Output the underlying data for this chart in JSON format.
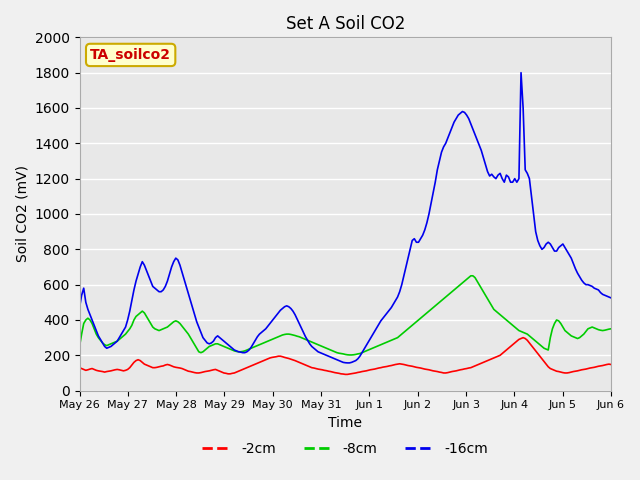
{
  "title": "Set A Soil CO2",
  "ylabel": "Soil CO2 (mV)",
  "xlabel": "Time",
  "annotation_text": "TA_soilco2",
  "annotation_bg": "#ffffcc",
  "annotation_border": "#ccaa00",
  "annotation_text_color": "#cc0000",
  "ylim": [
    0,
    2000
  ],
  "yticks": [
    0,
    200,
    400,
    600,
    800,
    1000,
    1200,
    1400,
    1600,
    1800,
    2000
  ],
  "xtick_labels": [
    "May 26",
    "May 27",
    "May 28",
    "May 29",
    "May 30",
    "May 31",
    "Jun 1",
    "Jun 2",
    "Jun 3",
    "Jun 4",
    "Jun 5",
    "Jun 6"
  ],
  "bg_color": "#e8e8e8",
  "grid_color": "#ffffff",
  "line_colors": [
    "#ff0000",
    "#00cc00",
    "#0000ee"
  ],
  "line_labels": [
    "-2cm",
    "-8cm",
    "-16cm"
  ],
  "line_width": 1.2,
  "red_line": [
    130,
    125,
    120,
    115,
    118,
    122,
    125,
    120,
    115,
    112,
    110,
    108,
    105,
    108,
    110,
    112,
    115,
    118,
    120,
    118,
    115,
    112,
    115,
    120,
    130,
    145,
    160,
    170,
    175,
    170,
    160,
    150,
    145,
    140,
    135,
    130,
    130,
    132,
    135,
    138,
    140,
    145,
    148,
    145,
    140,
    135,
    132,
    130,
    128,
    125,
    120,
    115,
    110,
    108,
    105,
    102,
    100,
    100,
    102,
    105,
    108,
    110,
    112,
    115,
    118,
    120,
    115,
    110,
    105,
    100,
    98,
    95,
    95,
    98,
    100,
    105,
    110,
    115,
    120,
    125,
    130,
    135,
    140,
    145,
    150,
    155,
    160,
    165,
    170,
    175,
    180,
    185,
    188,
    190,
    192,
    195,
    195,
    192,
    188,
    185,
    182,
    178,
    174,
    170,
    165,
    160,
    155,
    150,
    145,
    140,
    135,
    130,
    128,
    125,
    122,
    120,
    118,
    115,
    113,
    110,
    108,
    105,
    102,
    100,
    98,
    95,
    94,
    92,
    92,
    94,
    96,
    98,
    100,
    103,
    105,
    108,
    110,
    112,
    115,
    118,
    120,
    122,
    125,
    128,
    130,
    133,
    135,
    137,
    140,
    142,
    145,
    148,
    150,
    152,
    150,
    148,
    145,
    142,
    140,
    138,
    135,
    132,
    130,
    128,
    125,
    122,
    120,
    118,
    115,
    112,
    110,
    108,
    105,
    103,
    100,
    100,
    102,
    105,
    108,
    110,
    112,
    115,
    118,
    120,
    123,
    125,
    128,
    130,
    135,
    140,
    145,
    150,
    155,
    160,
    165,
    170,
    175,
    180,
    185,
    190,
    195,
    200,
    210,
    220,
    230,
    240,
    250,
    260,
    270,
    280,
    290,
    295,
    300,
    295,
    285,
    270,
    255,
    240,
    225,
    210,
    195,
    180,
    165,
    150,
    135,
    125,
    120,
    115,
    110,
    108,
    105,
    102,
    100,
    100,
    102,
    105,
    108,
    110,
    112,
    115,
    118,
    120,
    122,
    125,
    128,
    130,
    132,
    135,
    138,
    140,
    142,
    145,
    148,
    150,
    148,
    145,
    142,
    140,
    138,
    135,
    132,
    130,
    128,
    125
  ],
  "green_line": [
    250,
    320,
    380,
    400,
    410,
    400,
    380,
    350,
    320,
    300,
    285,
    270,
    260,
    255,
    260,
    265,
    270,
    275,
    280,
    290,
    300,
    310,
    320,
    335,
    350,
    370,
    400,
    420,
    430,
    440,
    450,
    440,
    420,
    400,
    380,
    360,
    350,
    345,
    340,
    345,
    350,
    355,
    360,
    370,
    380,
    390,
    395,
    390,
    380,
    365,
    350,
    335,
    320,
    300,
    280,
    260,
    240,
    220,
    215,
    220,
    230,
    240,
    250,
    255,
    260,
    265,
    265,
    260,
    255,
    250,
    245,
    240,
    235,
    230,
    225,
    222,
    220,
    220,
    222,
    225,
    230,
    235,
    240,
    245,
    250,
    255,
    260,
    265,
    270,
    275,
    280,
    285,
    290,
    295,
    300,
    305,
    310,
    315,
    318,
    320,
    320,
    318,
    315,
    312,
    308,
    305,
    300,
    295,
    290,
    285,
    280,
    275,
    270,
    265,
    260,
    255,
    250,
    245,
    240,
    235,
    230,
    225,
    220,
    215,
    212,
    210,
    208,
    205,
    203,
    202,
    202,
    203,
    205,
    208,
    210,
    215,
    220,
    225,
    230,
    235,
    240,
    245,
    250,
    255,
    260,
    265,
    270,
    275,
    280,
    285,
    290,
    295,
    300,
    310,
    320,
    330,
    340,
    350,
    360,
    370,
    380,
    390,
    400,
    410,
    420,
    430,
    440,
    450,
    460,
    470,
    480,
    490,
    500,
    510,
    520,
    530,
    540,
    550,
    560,
    570,
    580,
    590,
    600,
    610,
    620,
    630,
    640,
    650,
    650,
    640,
    620,
    600,
    580,
    560,
    540,
    520,
    500,
    480,
    460,
    450,
    440,
    430,
    420,
    410,
    400,
    390,
    380,
    370,
    360,
    350,
    340,
    335,
    330,
    325,
    320,
    310,
    300,
    290,
    280,
    270,
    260,
    250,
    240,
    235,
    230,
    300,
    350,
    380,
    400,
    395,
    380,
    360,
    340,
    330,
    320,
    310,
    305,
    300,
    295,
    300,
    310,
    320,
    335,
    350,
    355,
    360,
    355,
    350,
    345,
    342,
    340,
    342,
    345,
    348,
    350,
    352,
    353,
    354,
    355,
    355,
    353,
    350,
    348,
    345
  ],
  "blue_line": [
    470,
    540,
    580,
    500,
    460,
    430,
    400,
    370,
    340,
    310,
    290,
    270,
    250,
    240,
    245,
    250,
    260,
    270,
    280,
    300,
    320,
    340,
    360,
    400,
    450,
    510,
    570,
    620,
    660,
    700,
    730,
    710,
    680,
    650,
    620,
    590,
    580,
    570,
    560,
    560,
    570,
    590,
    620,
    660,
    700,
    730,
    750,
    740,
    710,
    670,
    630,
    590,
    550,
    510,
    470,
    430,
    390,
    360,
    330,
    300,
    285,
    270,
    265,
    270,
    280,
    300,
    310,
    300,
    290,
    280,
    270,
    260,
    250,
    240,
    230,
    225,
    220,
    218,
    215,
    215,
    220,
    230,
    245,
    265,
    285,
    305,
    320,
    330,
    340,
    350,
    365,
    380,
    395,
    410,
    425,
    440,
    455,
    465,
    475,
    480,
    475,
    465,
    450,
    430,
    405,
    380,
    355,
    330,
    305,
    285,
    265,
    250,
    240,
    230,
    220,
    215,
    210,
    205,
    200,
    195,
    190,
    185,
    180,
    175,
    170,
    165,
    160,
    158,
    157,
    157,
    160,
    165,
    170,
    180,
    195,
    215,
    235,
    255,
    275,
    295,
    315,
    335,
    355,
    375,
    395,
    410,
    425,
    440,
    455,
    470,
    490,
    510,
    530,
    560,
    600,
    650,
    700,
    750,
    800,
    850,
    860,
    840,
    840,
    860,
    880,
    910,
    950,
    1000,
    1060,
    1120,
    1180,
    1250,
    1300,
    1350,
    1380,
    1400,
    1430,
    1460,
    1490,
    1520,
    1540,
    1560,
    1570,
    1580,
    1575,
    1560,
    1540,
    1510,
    1480,
    1450,
    1420,
    1390,
    1360,
    1320,
    1280,
    1240,
    1215,
    1225,
    1210,
    1200,
    1220,
    1230,
    1200,
    1180,
    1220,
    1210,
    1180,
    1180,
    1200,
    1180,
    1200,
    1800,
    1600,
    1250,
    1230,
    1200,
    1100,
    1000,
    900,
    850,
    820,
    800,
    810,
    830,
    840,
    830,
    810,
    790,
    790,
    810,
    820,
    830,
    810,
    790,
    770,
    750,
    720,
    690,
    665,
    645,
    625,
    610,
    600,
    600,
    595,
    590,
    580,
    575,
    570,
    555,
    545,
    540,
    535,
    530,
    525
  ]
}
